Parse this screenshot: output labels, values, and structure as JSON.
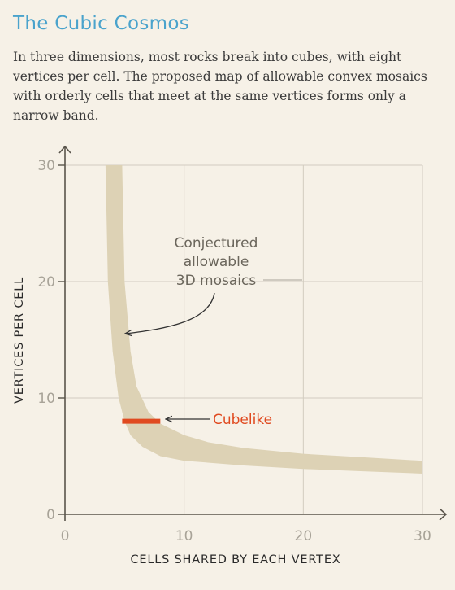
{
  "header": {
    "title": "The Cubic Cosmos",
    "subtitle": "In three dimensions, most rocks break into cubes, with eight vertices per cell. The proposed map of allowable convex mosaics with orderly cells that meet at the same vertices forms only a narrow band."
  },
  "chart_data": {
    "type": "area",
    "xlabel": "CELLS SHARED BY EACH VERTEX",
    "ylabel": "VERTICES PER CELL",
    "xlim": [
      0,
      30
    ],
    "ylim": [
      0,
      30
    ],
    "xticks": [
      0,
      10,
      20,
      30
    ],
    "yticks": [
      0,
      10,
      20,
      30
    ],
    "grid": true,
    "band": {
      "label": "Conjectured allowable 3D mosaics",
      "upper": [
        [
          4.8,
          30
        ],
        [
          5,
          20
        ],
        [
          5.5,
          14
        ],
        [
          6,
          11
        ],
        [
          7,
          8.8
        ],
        [
          8,
          7.8
        ],
        [
          10,
          6.8
        ],
        [
          12,
          6.2
        ],
        [
          15,
          5.7
        ],
        [
          20,
          5.2
        ],
        [
          25,
          4.9
        ],
        [
          30,
          4.6
        ]
      ],
      "lower": [
        [
          3.4,
          30
        ],
        [
          3.6,
          20
        ],
        [
          4,
          14
        ],
        [
          4.5,
          10
        ],
        [
          5,
          8
        ],
        [
          5.5,
          6.8
        ],
        [
          6.5,
          5.8
        ],
        [
          8,
          5
        ],
        [
          10,
          4.6
        ],
        [
          15,
          4.2
        ],
        [
          20,
          3.9
        ],
        [
          25,
          3.7
        ],
        [
          30,
          3.5
        ]
      ]
    },
    "highlight": {
      "label": "Cubelike",
      "x": [
        4.8,
        8
      ],
      "y": 8
    },
    "colors": {
      "band": "#ddd2b5",
      "highlight": "#e04a20",
      "title": "#4aa3cc",
      "grid": "#d2ccc0",
      "axis": "#5a554c"
    }
  }
}
